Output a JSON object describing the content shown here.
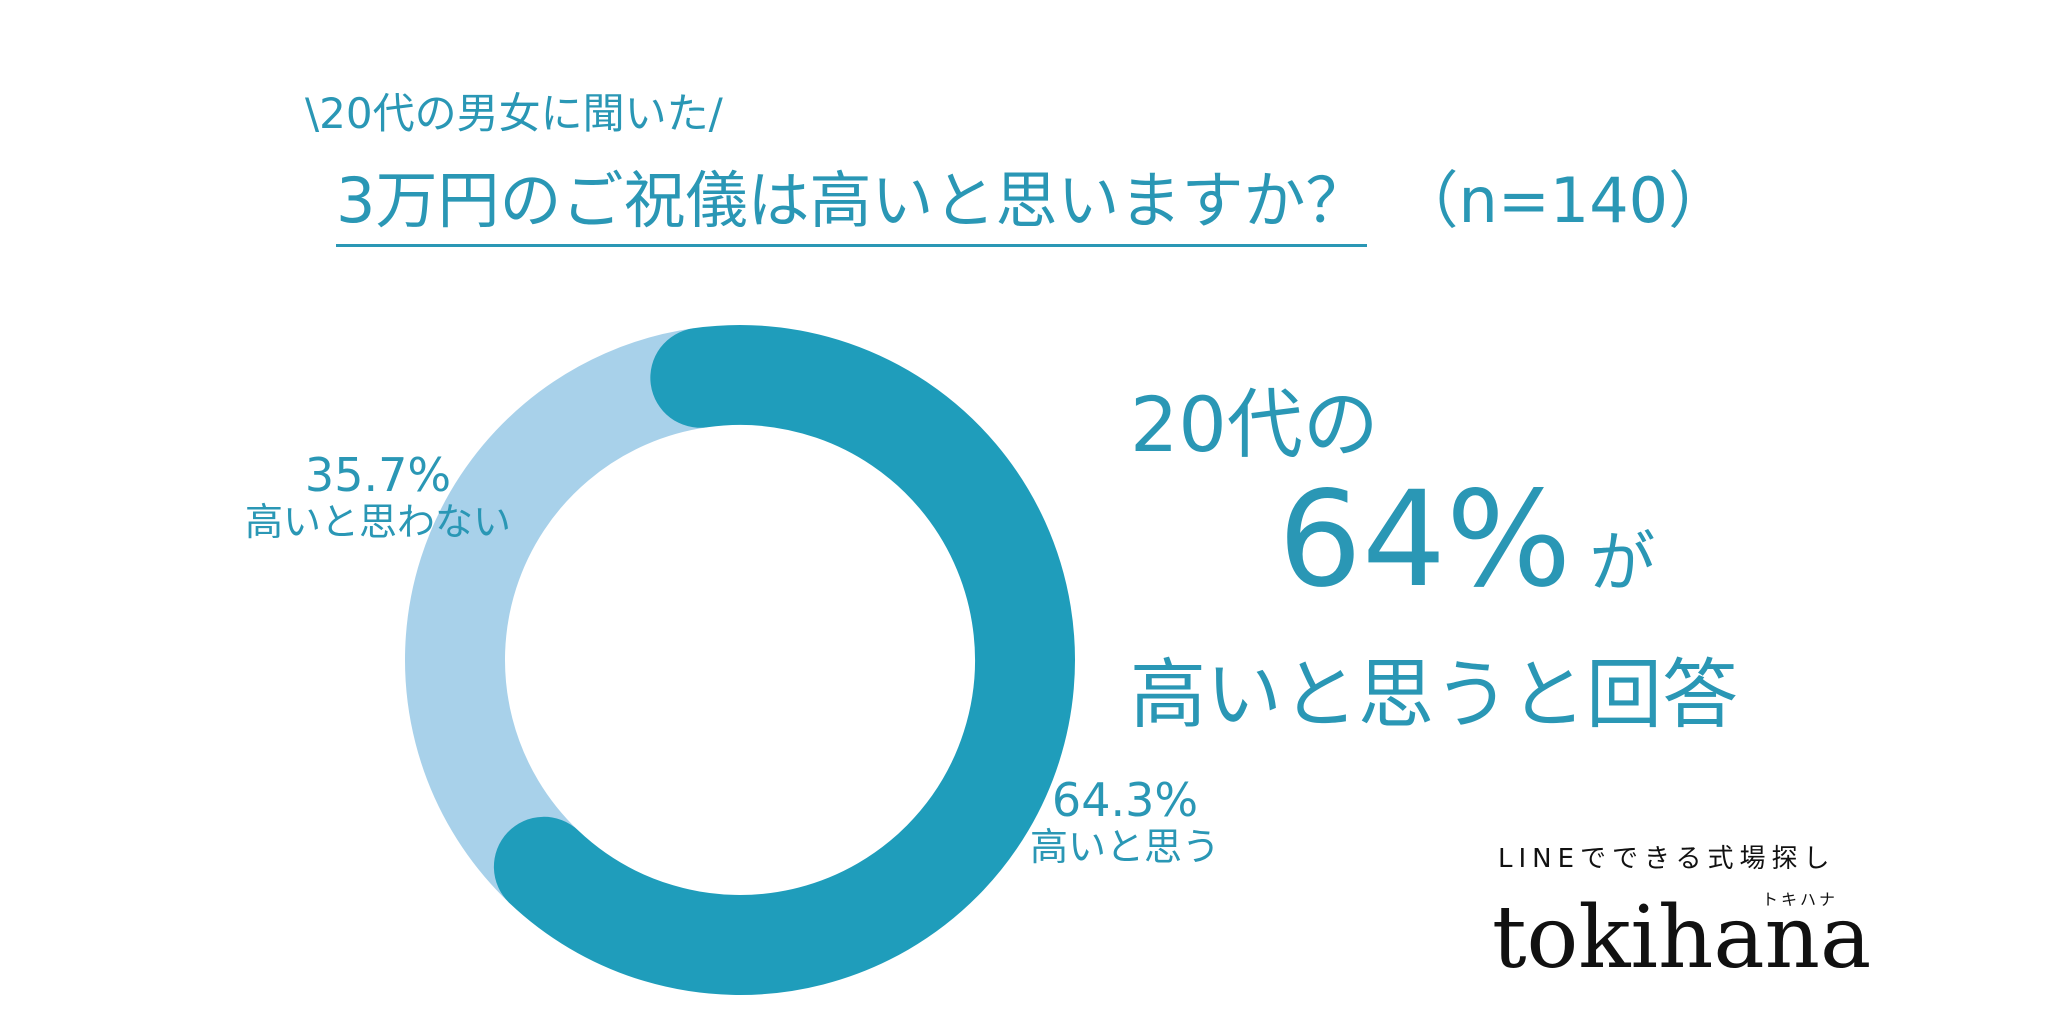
{
  "header": {
    "subtitle": "\\20代の男女に聞いた/",
    "title": "3万円のご祝儀は高いと思いますか？",
    "sample": "（n=140）"
  },
  "chart_data": {
    "type": "pie",
    "categories": [
      "高いと思う",
      "高いと思わない"
    ],
    "values": [
      64.3,
      35.7
    ],
    "labels": [
      "64.3%",
      "35.7%"
    ],
    "colors": [
      "#1f9dbb",
      "#a8d1ea"
    ]
  },
  "callout": {
    "line1": "20代の",
    "big": "64%",
    "particle": "が",
    "line3": "高いと思うと回答"
  },
  "brand": {
    "tagline": "LINEでできる式場探し",
    "kana": "トキハナ",
    "logo": "tokihana"
  },
  "colors": {
    "accent": "#2a97b5",
    "primary_slice": "#1f9dbb",
    "secondary_slice": "#a8d1ea",
    "brand_text": "#111111"
  }
}
